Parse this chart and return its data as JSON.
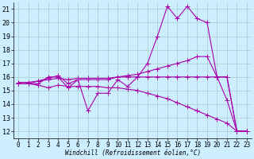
{
  "background_color": "#cceeff",
  "grid_color": "#aacccc",
  "line_color": "#aa00aa",
  "marker": "+",
  "markersize": 4,
  "linewidth": 0.8,
  "xlabel": "Windchill (Refroidissement éolien,°C)",
  "xlabel_fontsize": 5.5,
  "ylabel_ticks": [
    12,
    13,
    14,
    15,
    16,
    17,
    18,
    19,
    20,
    21
  ],
  "xlabel_ticks": [
    0,
    1,
    2,
    3,
    4,
    5,
    6,
    7,
    8,
    9,
    10,
    11,
    12,
    13,
    14,
    15,
    16,
    17,
    18,
    19,
    20,
    21,
    22,
    23
  ],
  "xlim": [
    -0.5,
    23.5
  ],
  "ylim": [
    11.5,
    21.5
  ],
  "tick_fontsize": 5.5,
  "series": [
    {
      "x": [
        0,
        1,
        2,
        3,
        4,
        5,
        6,
        7,
        8,
        9,
        10,
        11,
        12,
        13,
        14,
        15,
        16,
        17,
        18,
        19,
        20,
        21,
        22,
        23
      ],
      "y": [
        15.5,
        15.5,
        15.5,
        16.0,
        16.0,
        15.2,
        15.8,
        13.5,
        14.8,
        14.8,
        15.8,
        15.3,
        16.0,
        17.0,
        19.0,
        21.2,
        20.3,
        21.2,
        20.3,
        20.0,
        16.0,
        14.3,
        12.0,
        12.0
      ]
    },
    {
      "x": [
        0,
        1,
        2,
        3,
        4,
        5,
        6,
        7,
        8,
        9,
        10,
        11,
        12,
        13,
        14,
        15,
        16,
        17,
        18,
        19,
        20,
        21,
        22,
        23
      ],
      "y": [
        15.5,
        15.5,
        15.7,
        15.9,
        16.1,
        15.5,
        15.8,
        15.8,
        15.8,
        15.8,
        16.0,
        16.1,
        16.2,
        16.4,
        16.6,
        16.8,
        17.0,
        17.2,
        17.5,
        17.5,
        16.0,
        16.0,
        12.0,
        12.0
      ]
    },
    {
      "x": [
        0,
        1,
        2,
        3,
        4,
        5,
        6,
        7,
        8,
        9,
        10,
        11,
        12,
        13,
        14,
        15,
        16,
        17,
        18,
        19,
        20,
        21,
        22,
        23
      ],
      "y": [
        15.6,
        15.6,
        15.7,
        15.8,
        15.9,
        15.8,
        15.9,
        15.9,
        15.9,
        15.9,
        16.0,
        16.0,
        16.0,
        16.0,
        16.0,
        16.0,
        16.0,
        16.0,
        16.0,
        16.0,
        16.0,
        16.0,
        12.0,
        12.0
      ]
    },
    {
      "x": [
        0,
        1,
        2,
        3,
        4,
        5,
        6,
        7,
        8,
        9,
        10,
        11,
        12,
        13,
        14,
        15,
        16,
        17,
        18,
        19,
        20,
        21,
        22,
        23
      ],
      "y": [
        15.5,
        15.5,
        15.4,
        15.2,
        15.4,
        15.3,
        15.3,
        15.3,
        15.3,
        15.2,
        15.2,
        15.1,
        15.0,
        14.8,
        14.6,
        14.4,
        14.1,
        13.8,
        13.5,
        13.2,
        12.9,
        12.6,
        12.0,
        12.0
      ]
    }
  ]
}
